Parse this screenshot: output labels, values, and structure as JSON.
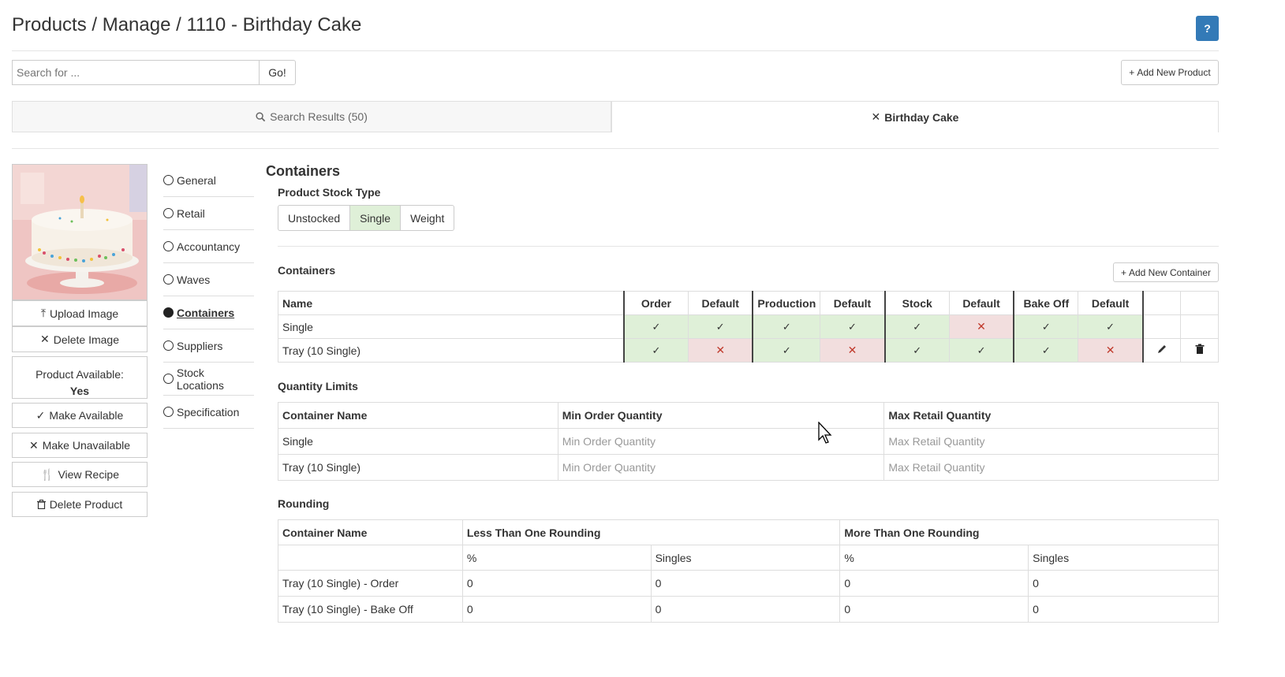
{
  "header": {
    "title": "Products / Manage / 1110 - Birthday Cake",
    "help": "?"
  },
  "search": {
    "placeholder": "Search for ...",
    "go": "Go!",
    "add_new_product": "Add New Product"
  },
  "tabs": {
    "search_results": "Search Results (50)",
    "current": "Birthday Cake"
  },
  "left_panel": {
    "upload_image": "Upload Image",
    "delete_image": "Delete Image",
    "available_label": "Product Available:",
    "available_value": "Yes",
    "make_available": "Make Available",
    "make_unavailable": "Make Unavailable",
    "view_recipe": "View Recipe",
    "delete_product": "Delete Product"
  },
  "nav": {
    "items": [
      {
        "label": "General",
        "active": false
      },
      {
        "label": "Retail",
        "active": false
      },
      {
        "label": "Accountancy",
        "active": false
      },
      {
        "label": "Waves",
        "active": false
      },
      {
        "label": "Containers",
        "active": true
      },
      {
        "label": "Suppliers",
        "active": false
      },
      {
        "label": "Stock Locations",
        "active": false
      },
      {
        "label": "Specification",
        "active": false
      }
    ]
  },
  "main": {
    "heading": "Containers",
    "stock_type_label": "Product Stock Type",
    "stock_types": [
      "Unstocked",
      "Single",
      "Weight"
    ],
    "stock_type_selected": "Single",
    "containers_label": "Containers",
    "add_container": "Add New Container",
    "container_headers": [
      "Name",
      "Order",
      "Default",
      "Production",
      "Default",
      "Stock",
      "Default",
      "Bake Off",
      "Default"
    ],
    "containers": [
      {
        "name": "Single",
        "flags": [
          true,
          true,
          true,
          true,
          true,
          false,
          true,
          true
        ],
        "editable": false
      },
      {
        "name": "Tray (10 Single)",
        "flags": [
          true,
          false,
          true,
          false,
          true,
          true,
          true,
          false
        ],
        "editable": true
      }
    ],
    "quantity_label": "Quantity Limits",
    "quantity_headers": [
      "Container Name",
      "Min Order Quantity",
      "Max Retail Quantity"
    ],
    "quantity_rows": [
      {
        "name": "Single",
        "min_placeholder": "Min Order Quantity",
        "max_placeholder": "Max Retail Quantity"
      },
      {
        "name": "Tray (10 Single)",
        "min_placeholder": "Min Order Quantity",
        "max_placeholder": "Max Retail Quantity"
      }
    ],
    "rounding_label": "Rounding",
    "rounding_headers": [
      "Container Name",
      "Less Than One Rounding",
      "More Than One Rounding"
    ],
    "rounding_subheaders": [
      "%",
      "Singles",
      "%",
      "Singles"
    ],
    "rounding_rows": [
      {
        "name": "Tray (10 Single) - Order",
        "values": [
          "0",
          "0",
          "0",
          "0"
        ]
      },
      {
        "name": "Tray (10 Single) - Bake Off",
        "values": [
          "0",
          "0",
          "0",
          "0"
        ]
      }
    ]
  },
  "colors": {
    "primary": "#337ab7",
    "success_bg": "#dff0d8",
    "danger_bg": "#f2dede",
    "danger": "#c0392b"
  }
}
